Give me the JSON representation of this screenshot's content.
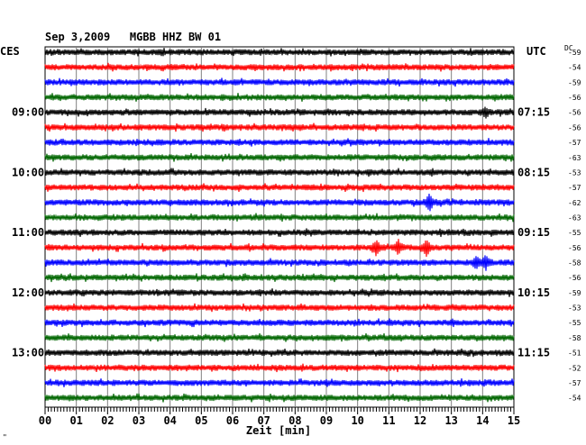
{
  "header": {
    "title": "Sep 3,2009   MGBB HHZ BW 01",
    "left_label": "CES",
    "right_label": "UTC",
    "dc_label": "DC"
  },
  "footer": {
    "xlabel": "Zeit [min]",
    "corner_mark": "\""
  },
  "chart_data": {
    "type": "line",
    "title": "Sep 3,2009   MGBB HHZ BW 01",
    "xlabel": "Zeit [min]",
    "x_range": [
      0,
      15
    ],
    "x_ticks": [
      "00",
      "01",
      "02",
      "03",
      "04",
      "05",
      "06",
      "07",
      "08",
      "09",
      "10",
      "11",
      "12",
      "13",
      "14",
      "15"
    ],
    "grid": true,
    "rows": 24,
    "row_colors": [
      "#000000",
      "#ff0000",
      "#0000ff",
      "#006600"
    ],
    "left_time_labels": [
      {
        "row": 4,
        "label": "09:00"
      },
      {
        "row": 8,
        "label": "10:00"
      },
      {
        "row": 12,
        "label": "11:00"
      },
      {
        "row": 16,
        "label": "12:00"
      },
      {
        "row": 20,
        "label": "13:00"
      }
    ],
    "right_time_labels": [
      {
        "row": 4,
        "label": "07:15"
      },
      {
        "row": 8,
        "label": "08:15"
      },
      {
        "row": 12,
        "label": "09:15"
      },
      {
        "row": 16,
        "label": "10:15"
      },
      {
        "row": 20,
        "label": "11:15"
      }
    ],
    "dc_offsets": [
      "-59",
      "-54",
      "-59",
      "-56",
      "-56",
      "-56",
      "-57",
      "-63",
      "-53",
      "-57",
      "-62",
      "-63",
      "-55",
      "-56",
      "-58",
      "-56",
      "-59",
      "-53",
      "-55",
      "-58",
      "-51",
      "-52",
      "-57",
      "-54"
    ],
    "events": [
      {
        "row": 4,
        "minute": 14.1,
        "amp": 0.45
      },
      {
        "row": 10,
        "minute": 12.3,
        "amp": 1.0
      },
      {
        "row": 13,
        "minute": 10.6,
        "amp": 0.85
      },
      {
        "row": 13,
        "minute": 11.3,
        "amp": 0.8
      },
      {
        "row": 13,
        "minute": 12.2,
        "amp": 0.95
      },
      {
        "row": 14,
        "minute": 13.8,
        "amp": 0.7
      },
      {
        "row": 14,
        "minute": 14.1,
        "amp": 0.75
      }
    ]
  }
}
